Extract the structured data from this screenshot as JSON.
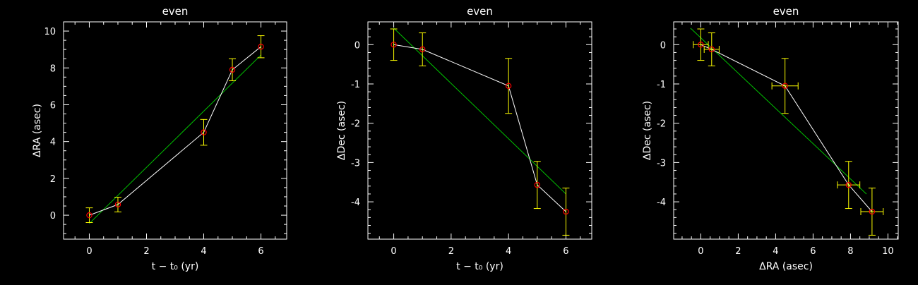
{
  "chart_data": [
    {
      "type": "line",
      "title": "even",
      "xlabel": "t − t₀ (yr)",
      "ylabel": "ΔRA (asec)",
      "xlim": [
        -0.9,
        6.9
      ],
      "ylim": [
        -1.3,
        10.5
      ],
      "xticks": [
        0,
        2,
        4,
        6
      ],
      "yticks": [
        0,
        2,
        4,
        6,
        8,
        10
      ],
      "grid": false,
      "series": [
        {
          "x": [
            0,
            1,
            4,
            5,
            6
          ],
          "y": [
            0.0,
            0.58,
            4.5,
            7.9,
            9.15
          ],
          "yerr": [
            0.4,
            0.4,
            0.7,
            0.6,
            0.6
          ],
          "color": "#ffffff",
          "marker_color": "#ff0000",
          "errbar_color": "#ffff00"
        }
      ],
      "fit": {
        "x": [
          0,
          6
        ],
        "y": [
          -0.45,
          8.7
        ],
        "color": "#00c000"
      }
    },
    {
      "type": "line",
      "title": "even",
      "xlabel": "t − t₀ (yr)",
      "ylabel": "ΔDec (asec)",
      "xlim": [
        -0.9,
        6.9
      ],
      "ylim": [
        -4.95,
        0.58
      ],
      "xticks": [
        0,
        2,
        4,
        6
      ],
      "yticks": [
        0,
        -1,
        -2,
        -3,
        -4
      ],
      "grid": false,
      "series": [
        {
          "x": [
            0,
            1,
            4,
            5,
            6
          ],
          "y": [
            0.0,
            -0.12,
            -1.05,
            -3.57,
            -4.25
          ],
          "yerr": [
            0.4,
            0.42,
            0.7,
            0.6,
            0.6
          ],
          "color": "#ffffff",
          "marker_color": "#ff0000",
          "errbar_color": "#ffff00"
        }
      ],
      "fit": {
        "x": [
          0,
          6
        ],
        "y": [
          0.42,
          -3.8
        ],
        "color": "#00c000"
      }
    },
    {
      "type": "scatter",
      "title": "even",
      "xlabel": "ΔRA (asec)",
      "ylabel": "ΔDec (asec)",
      "xlim": [
        -1.45,
        10.55
      ],
      "ylim": [
        -4.95,
        0.58
      ],
      "xticks": [
        0,
        2,
        4,
        6,
        8,
        10
      ],
      "yticks": [
        0,
        -1,
        -2,
        -3,
        -4
      ],
      "grid": false,
      "series": [
        {
          "x": [
            0,
            0.58,
            4.5,
            7.9,
            9.15
          ],
          "y": [
            0.0,
            -0.12,
            -1.05,
            -3.57,
            -4.25
          ],
          "xerr": [
            0.4,
            0.4,
            0.7,
            0.6,
            0.6
          ],
          "yerr": [
            0.4,
            0.42,
            0.7,
            0.6,
            0.6
          ],
          "color": "#ffffff",
          "marker_color": "#ff0000",
          "errbar_color": "#ffff00"
        }
      ],
      "fit": {
        "x": [
          -0.55,
          8.85
        ],
        "y": [
          0.42,
          -3.8
        ],
        "color": "#00c000"
      }
    }
  ]
}
